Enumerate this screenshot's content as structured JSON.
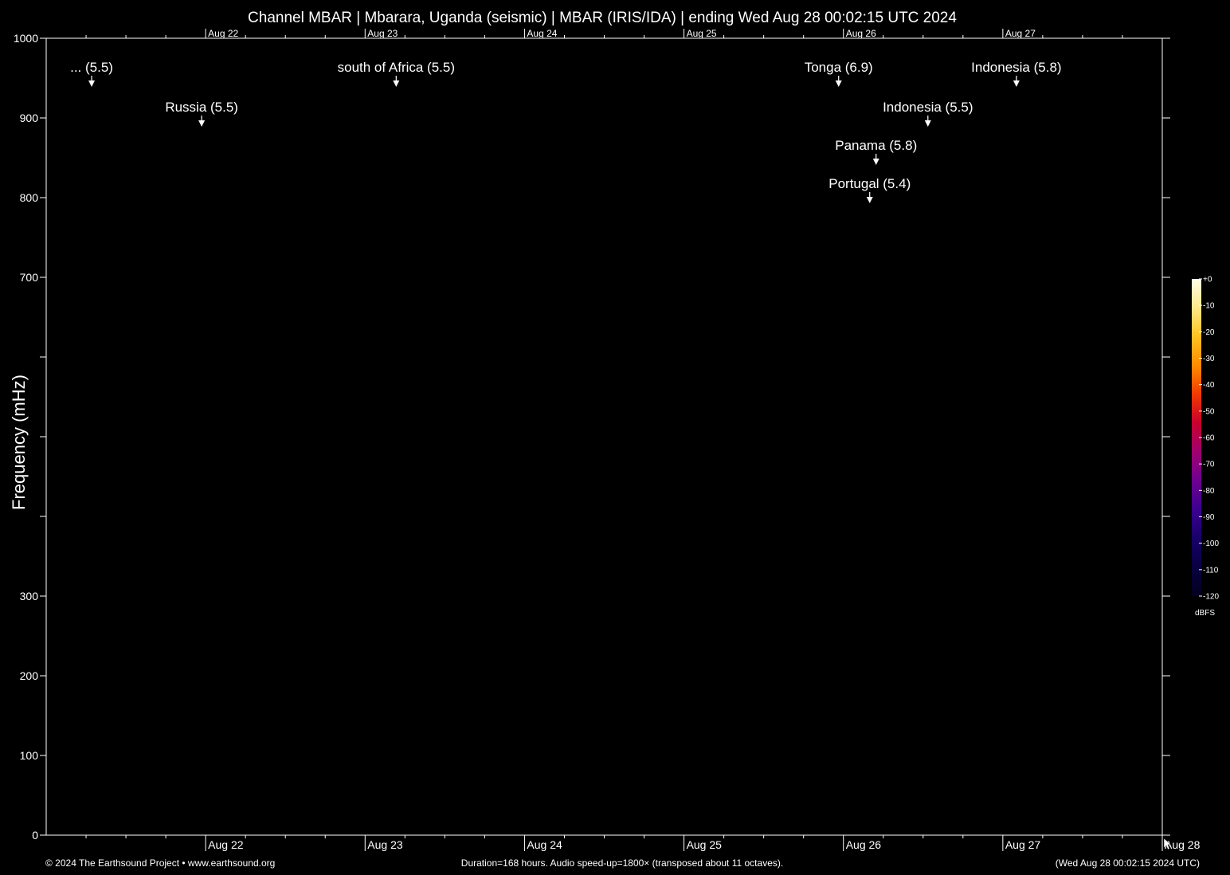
{
  "chart_data": {
    "type": "heatmap",
    "title": "Channel MBAR | Mbarara, Uganda (seismic) | MBAR (IRIS/IDA) | ending Wed Aug 28 00:02:15 UTC 2024",
    "ylabel": "Frequency (mHz)",
    "ylim": [
      0,
      1000
    ],
    "yticks": [
      0,
      100,
      200,
      300,
      400,
      500,
      600,
      700,
      800,
      900,
      1000
    ],
    "ytick_labels": [
      "0",
      "100",
      "200",
      "300",
      "",
      "",
      "",
      "700",
      "800",
      "900",
      "1000"
    ],
    "xlim_days": [
      0,
      7
    ],
    "date_labels": [
      {
        "day": 1,
        "label": "Aug 22"
      },
      {
        "day": 2,
        "label": "Aug 23"
      },
      {
        "day": 3,
        "label": "Aug 24"
      },
      {
        "day": 4,
        "label": "Aug 25"
      },
      {
        "day": 5,
        "label": "Aug 26"
      },
      {
        "day": 6,
        "label": "Aug 27"
      },
      {
        "day": 7,
        "label": "Aug 28"
      }
    ],
    "top_date_labels": [
      "Aug 22",
      "Aug 23",
      "Aug 24",
      "Aug 25",
      "Aug 26",
      "Aug 27"
    ],
    "events": [
      {
        "label": "... (5.5)",
        "day": 0.285,
        "freq": 940
      },
      {
        "label": "Russia (5.5)",
        "day": 0.975,
        "freq": 890
      },
      {
        "label": "south of Africa (5.5)",
        "day": 2.195,
        "freq": 940
      },
      {
        "label": "Tonga (6.9)",
        "day": 4.97,
        "freq": 940
      },
      {
        "label": "Indonesia (5.8)",
        "day": 6.085,
        "freq": 940
      },
      {
        "label": "Indonesia (5.5)",
        "day": 5.53,
        "freq": 890
      },
      {
        "label": "Panama (5.8)",
        "day": 5.205,
        "freq": 842
      },
      {
        "label": "Portugal (5.4)",
        "day": 5.165,
        "freq": 794
      }
    ],
    "colorbar": {
      "ticks": [
        "+0",
        "-10",
        "-20",
        "-30",
        "-40",
        "-50",
        "-60",
        "-70",
        "-80",
        "-90",
        "-100",
        "-110",
        "-120"
      ],
      "unit": "dBFS",
      "colors": [
        "#fffde8",
        "#ffe98a",
        "#ffc11f",
        "#ff8c00",
        "#f03a00",
        "#c8002c",
        "#a00070",
        "#6e0090",
        "#3c0090",
        "#18006a",
        "#080040",
        "#040020"
      ]
    }
  },
  "footer": {
    "left": "© 2024 The Earthsound Project • www.earthsound.org",
    "center": "Duration=168 hours. Audio speed-up=1800× (transposed about 11 octaves).",
    "right": "(Wed Aug 28 00:02:15 2024 UTC)"
  }
}
